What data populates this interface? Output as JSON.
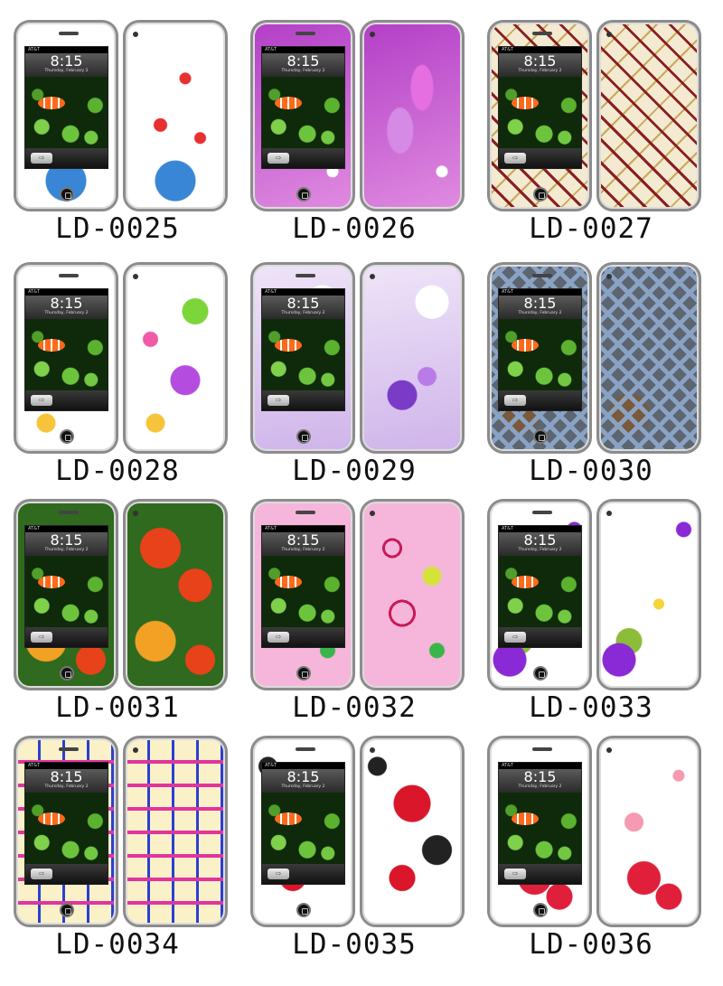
{
  "lockscreen": {
    "time": "8:15",
    "date": "Thursday, February 2",
    "carrier": "AT&T",
    "slider_glyph": "⇨"
  },
  "items": [
    {
      "code": "LD-0025",
      "design": "hearts-swirls",
      "colors": [
        "#ffffff",
        "#e83030",
        "#3a86d6"
      ]
    },
    {
      "code": "LD-0026",
      "design": "purple-hearts",
      "colors": [
        "#b33fc7",
        "#e56fe0",
        "#ffffff"
      ]
    },
    {
      "code": "LD-0027",
      "design": "anchors",
      "colors": [
        "#f3ead1",
        "#8a1f22",
        "#c9a85a"
      ]
    },
    {
      "code": "LD-0028",
      "design": "flowers-butterflies",
      "colors": [
        "#ffffff",
        "#7cd63a",
        "#b44ce0"
      ]
    },
    {
      "code": "LD-0029",
      "design": "lavender-flowers",
      "colors": [
        "#cfb4ea",
        "#7a3cc7",
        "#ffffff"
      ]
    },
    {
      "code": "LD-0030",
      "design": "diamond-plate-metal",
      "colors": [
        "#5d6570",
        "#8aa3c4",
        "#7a5a3a"
      ]
    },
    {
      "code": "LD-0031",
      "design": "orange-lilies",
      "colors": [
        "#e8421b",
        "#f2a124",
        "#2f6a1e"
      ]
    },
    {
      "code": "LD-0032",
      "design": "pink-circles",
      "colors": [
        "#f6b5da",
        "#c81a56",
        "#d6e23a"
      ]
    },
    {
      "code": "LD-0033",
      "design": "daisy-purple-splash",
      "colors": [
        "#ffffff",
        "#8a2ad6",
        "#8bbd3a"
      ]
    },
    {
      "code": "LD-0034",
      "design": "retro-squares",
      "colors": [
        "#fbf1c8",
        "#e0359e",
        "#2b3fd1"
      ]
    },
    {
      "code": "LD-0035",
      "design": "red-flowers-grunge",
      "colors": [
        "#ffffff",
        "#d9162a",
        "#222222"
      ]
    },
    {
      "code": "LD-0036",
      "design": "red-hearts-swirls",
      "colors": [
        "#ffffff",
        "#e0203a",
        "#f59ab0"
      ]
    }
  ]
}
